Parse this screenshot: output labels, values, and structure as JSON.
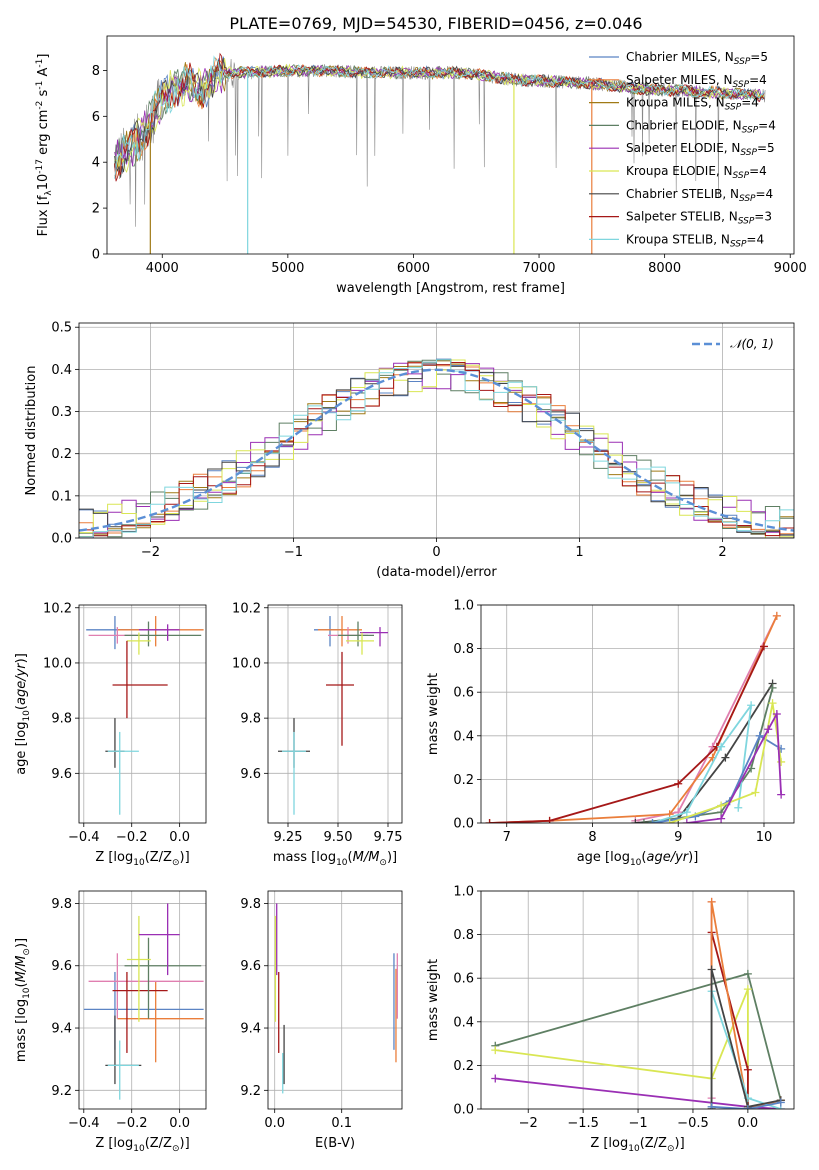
{
  "page": {
    "title": "PLATE=0769, MJD=54530, FIBERID=0456, z=0.046"
  },
  "colors": {
    "Chabrier MILES": "#5b84c4",
    "Salpeter MILES": "#ea7e3b",
    "Kroupa MILES": "#a07a16",
    "Chabrier ELODIE": "#5e7f63",
    "Salpeter ELODIE": "#9a2fb4",
    "Kroupa ELODIE": "#d9e653",
    "Chabrier STELIB": "#444444",
    "Salpeter STELIB": "#a51818",
    "Kroupa STELIB": "#7fd6de",
    "pink": "#e07fb0",
    "normal": "#5b8fd6"
  },
  "chart_data": [
    {
      "id": "spectrum",
      "type": "line",
      "xlabel": "wavelength [Angstrom, rest frame]",
      "ylabel": "Flux [f$_\\lambda$10$^{-17}$ erg cm$^{-2}$ s$^{-1}$ A$^{-1}$]",
      "xlim": [
        3560,
        9030
      ],
      "ylim": [
        0,
        9.5
      ],
      "xticks": [
        4000,
        5000,
        6000,
        7000,
        8000,
        9000
      ],
      "yticks": [
        0,
        2,
        4,
        6,
        8
      ],
      "legend_position": "upper right",
      "legend": [
        {
          "name": "Chabrier MILES",
          "suffix": "=5"
        },
        {
          "name": "Salpeter MILES",
          "suffix": "=4"
        },
        {
          "name": "Kroupa MILES",
          "suffix": "=4"
        },
        {
          "name": "Chabrier ELODIE",
          "suffix": "=4"
        },
        {
          "name": "Salpeter ELODIE",
          "suffix": "=5"
        },
        {
          "name": "Kroupa ELODIE",
          "suffix": "=4"
        },
        {
          "name": "Chabrier STELIB",
          "suffix": "=4"
        },
        {
          "name": "Salpeter STELIB",
          "suffix": "=3"
        },
        {
          "name": "Kroupa STELIB",
          "suffix": "=4"
        }
      ],
      "legend_sub": "SSP",
      "continuum": {
        "x": [
          3620,
          3700,
          3800,
          3900,
          4000,
          4100,
          4200,
          4300,
          4400,
          4500,
          4700,
          5000,
          5300,
          5600,
          6000,
          6400,
          6800,
          7200,
          7500,
          7800,
          8200,
          8500,
          8800
        ],
        "y": [
          4.0,
          4.4,
          4.9,
          5.7,
          6.8,
          7.2,
          7.5,
          7.1,
          7.6,
          7.9,
          7.9,
          8.0,
          8.0,
          7.9,
          7.9,
          7.9,
          7.6,
          7.5,
          7.4,
          7.2,
          7.1,
          7.0,
          6.9
        ]
      },
      "dropouts": [
        {
          "series": "Kroupa MILES",
          "x": 3905
        },
        {
          "series": "Kroupa STELIB",
          "x": 4680
        },
        {
          "series": "Kroupa ELODIE",
          "x": 6800
        },
        {
          "series": "Salpeter MILES",
          "x": 7420
        }
      ]
    },
    {
      "id": "residuals",
      "type": "histogram",
      "xlabel": "(data-model)/error",
      "ylabel": "Normed distribution",
      "xlim": [
        -2.5,
        2.5
      ],
      "ylim": [
        0,
        0.51
      ],
      "xticks": [
        -2,
        -1,
        0,
        1,
        2
      ],
      "yticks": [
        0.0,
        0.1,
        0.2,
        0.3,
        0.4,
        0.5
      ],
      "grid": true,
      "bin_width": 0.1,
      "bin_start": -2.5,
      "legend_position": "upper right",
      "normal_label": "$\\mathcal{N}(0, 1)$",
      "series": [
        {
          "name": "Chabrier MILES",
          "offset": 0.2
        },
        {
          "name": "Salpeter MILES",
          "offset": 1.3
        },
        {
          "name": "Kroupa MILES",
          "offset": 2.1
        },
        {
          "name": "Chabrier ELODIE",
          "offset": 3.4
        },
        {
          "name": "Salpeter ELODIE",
          "offset": 4.7
        },
        {
          "name": "Kroupa ELODIE",
          "offset": 5.5
        },
        {
          "name": "Chabrier STELIB",
          "offset": 6.6
        },
        {
          "name": "Salpeter STELIB",
          "offset": 7.9
        },
        {
          "name": "Kroupa STELIB",
          "offset": 8.8
        }
      ]
    },
    {
      "id": "age_vs_Z",
      "type": "errorbar",
      "xlabel": "Z [log$_{10}$(Z/Z$_\\odot$)]",
      "ylabel": "age  [log$_{10}$($age/yr$)]",
      "xlim": [
        -0.42,
        0.11
      ],
      "ylim": [
        9.42,
        10.21
      ],
      "xticks": [
        -0.4,
        -0.2,
        0.0
      ],
      "yticks": [
        9.6,
        9.8,
        10.0,
        10.2
      ],
      "grid": true,
      "points": [
        {
          "c": "Chabrier MILES",
          "x": -0.27,
          "xe": [
            0.12,
            0.1
          ],
          "y": 10.12,
          "ye": [
            0.07,
            0.05
          ]
        },
        {
          "c": "Salpeter MILES",
          "x": -0.1,
          "xe": [
            0.16,
            0.2
          ],
          "y": 10.12,
          "ye": [
            0.06,
            0.05
          ]
        },
        {
          "c": "pink",
          "x": -0.26,
          "xe": [
            0.12,
            0.12
          ],
          "y": 10.1,
          "ye": [
            0.03,
            0.03
          ]
        },
        {
          "c": "Chabrier ELODIE",
          "x": -0.13,
          "xe": [
            0.1,
            0.22
          ],
          "y": 10.1,
          "ye": [
            0.04,
            0.05
          ]
        },
        {
          "c": "Salpeter ELODIE",
          "x": -0.05,
          "xe": [
            0.12,
            0.05
          ],
          "y": 10.12,
          "ye": [
            0.04,
            0.02
          ]
        },
        {
          "c": "Kroupa ELODIE",
          "x": -0.17,
          "xe": [
            0.05,
            0.05
          ],
          "y": 10.08,
          "ye": [
            0.05,
            0.03
          ]
        },
        {
          "c": "Salpeter STELIB",
          "x": -0.22,
          "xe": [
            0.06,
            0.17
          ],
          "y": 9.92,
          "ye": [
            0.12,
            0.16
          ]
        },
        {
          "c": "Chabrier STELIB",
          "x": -0.27,
          "xe": [
            0.04,
            0.04
          ],
          "y": 9.68,
          "ye": [
            0.06,
            0.12
          ]
        },
        {
          "c": "Kroupa STELIB",
          "x": -0.25,
          "xe": [
            0.05,
            0.08
          ],
          "y": 9.68,
          "ye": [
            0.23,
            0.07
          ]
        }
      ]
    },
    {
      "id": "age_vs_mass",
      "type": "errorbar",
      "xlabel": "mass [log$_{10}$($M/M_\\odot$)]",
      "ylabel": "",
      "xlim": [
        9.15,
        9.82
      ],
      "ylim": [
        9.42,
        10.21
      ],
      "xticks": [
        9.25,
        9.5,
        9.75
      ],
      "yticks": [
        9.6,
        9.8,
        10.0,
        10.2
      ],
      "grid": true,
      "points": [
        {
          "c": "Chabrier MILES",
          "x": 9.46,
          "xe": [
            0.08,
            0.06
          ],
          "y": 10.12,
          "ye": [
            0.06,
            0.05
          ]
        },
        {
          "c": "Salpeter MILES",
          "x": 9.52,
          "xe": [
            0.12,
            0.1
          ],
          "y": 10.12,
          "ye": [
            0.06,
            0.05
          ]
        },
        {
          "c": "pink",
          "x": 9.55,
          "xe": [
            0.1,
            0.1
          ],
          "y": 10.1,
          "ye": [
            0.03,
            0.03
          ]
        },
        {
          "c": "Chabrier ELODIE",
          "x": 9.6,
          "xe": [
            0.1,
            0.08
          ],
          "y": 10.1,
          "ye": [
            0.04,
            0.05
          ]
        },
        {
          "c": "Salpeter ELODIE",
          "x": 9.71,
          "xe": [
            0.1,
            0.04
          ],
          "y": 10.11,
          "ye": [
            0.05,
            0.02
          ]
        },
        {
          "c": "Kroupa ELODIE",
          "x": 9.62,
          "xe": [
            0.08,
            0.06
          ],
          "y": 10.08,
          "ye": [
            0.05,
            0.03
          ]
        },
        {
          "c": "Salpeter STELIB",
          "x": 9.52,
          "xe": [
            0.08,
            0.06
          ],
          "y": 9.92,
          "ye": [
            0.22,
            0.12
          ]
        },
        {
          "c": "Chabrier STELIB",
          "x": 9.28,
          "xe": [
            0.08,
            0.08
          ],
          "y": 9.68,
          "ye": [
            0.06,
            0.12
          ]
        },
        {
          "c": "Kroupa STELIB",
          "x": 9.28,
          "xe": [
            0.06,
            0.06
          ],
          "y": 9.68,
          "ye": [
            0.23,
            0.07
          ]
        }
      ]
    },
    {
      "id": "mass_weight_vs_age",
      "type": "line",
      "xlabel": "age  [log$_{10}$($age/yr$)]",
      "ylabel": "mass weight",
      "xlim": [
        6.7,
        10.35
      ],
      "ylim": [
        0.0,
        1.0
      ],
      "xticks": [
        7,
        8,
        9,
        10
      ],
      "yticks": [
        0.0,
        0.2,
        0.4,
        0.6,
        0.8,
        1.0
      ],
      "grid": true,
      "series": [
        {
          "name": "pink",
          "x": [
            8.5,
            9.0,
            9.4,
            10.15
          ],
          "y": [
            0.01,
            0.05,
            0.35,
            0.95
          ]
        },
        {
          "name": "Salpeter MILES",
          "x": [
            6.8,
            7.5,
            8.9,
            9.4,
            10.15
          ],
          "y": [
            0.0,
            0.01,
            0.04,
            0.3,
            0.95
          ]
        },
        {
          "name": "Salpeter STELIB",
          "x": [
            6.8,
            7.5,
            9.0,
            9.45,
            10.0
          ],
          "y": [
            0.0,
            0.01,
            0.18,
            0.35,
            0.81
          ]
        },
        {
          "name": "Chabrier STELIB",
          "x": [
            8.5,
            9.0,
            9.55,
            10.1
          ],
          "y": [
            0.0,
            0.02,
            0.3,
            0.64
          ]
        },
        {
          "name": "Chabrier ELODIE",
          "x": [
            8.6,
            9.5,
            9.85,
            10.1
          ],
          "y": [
            0.0,
            0.05,
            0.25,
            0.62
          ]
        },
        {
          "name": "Kroupa STELIB",
          "x": [
            8.7,
            9.1,
            9.5,
            9.85,
            9.7
          ],
          "y": [
            0.0,
            0.05,
            0.35,
            0.54,
            0.07
          ]
        },
        {
          "name": "Chabrier MILES",
          "x": [
            8.7,
            9.2,
            9.6,
            9.95,
            10.2
          ],
          "y": [
            0.0,
            0.03,
            0.1,
            0.4,
            0.34
          ]
        },
        {
          "name": "Kroupa ELODIE",
          "x": [
            8.9,
            9.5,
            9.9,
            10.1,
            10.2
          ],
          "y": [
            0.0,
            0.08,
            0.14,
            0.55,
            0.28
          ]
        },
        {
          "name": "Salpeter ELODIE",
          "x": [
            9.1,
            9.5,
            10.05,
            10.15,
            10.2
          ],
          "y": [
            0.0,
            0.02,
            0.43,
            0.5,
            0.13
          ]
        }
      ]
    },
    {
      "id": "mass_vs_Z",
      "type": "errorbar",
      "xlabel": "Z [log$_{10}$(Z/Z$_\\odot$)]",
      "ylabel": "mass [log$_{10}$($M/M_\\odot$)]",
      "xlim": [
        -0.42,
        0.11
      ],
      "ylim": [
        9.14,
        9.84
      ],
      "xticks": [
        -0.4,
        -0.2,
        0.0
      ],
      "yticks": [
        9.2,
        9.4,
        9.6,
        9.8
      ],
      "grid": true,
      "points": [
        {
          "c": "Chabrier MILES",
          "x": -0.27,
          "xe": [
            0.13,
            0.37
          ],
          "y": 9.46,
          "ye": [
            0.13,
            0.12
          ]
        },
        {
          "c": "Salpeter MILES",
          "x": -0.1,
          "xe": [
            0.16,
            0.2
          ],
          "y": 9.43,
          "ye": [
            0.14,
            0.12
          ]
        },
        {
          "c": "pink",
          "x": -0.26,
          "xe": [
            0.12,
            0.36
          ],
          "y": 9.55,
          "ye": [
            0.12,
            0.09
          ]
        },
        {
          "c": "Salpeter STELIB",
          "x": -0.22,
          "xe": [
            0.06,
            0.17
          ],
          "y": 9.52,
          "ye": [
            0.2,
            0.06
          ]
        },
        {
          "c": "Chabrier ELODIE",
          "x": -0.13,
          "xe": [
            0.1,
            0.22
          ],
          "y": 9.6,
          "ye": [
            0.17,
            0.09
          ]
        },
        {
          "c": "Kroupa ELODIE",
          "x": -0.17,
          "xe": [
            0.05,
            0.05
          ],
          "y": 9.62,
          "ye": [
            0.2,
            0.14
          ]
        },
        {
          "c": "Salpeter ELODIE",
          "x": -0.05,
          "xe": [
            0.12,
            0.05
          ],
          "y": 9.7,
          "ye": [
            0.13,
            0.1
          ]
        },
        {
          "c": "Chabrier STELIB",
          "x": -0.27,
          "xe": [
            0.04,
            0.11
          ],
          "y": 9.28,
          "ye": [
            0.06,
            0.16
          ]
        },
        {
          "c": "Kroupa STELIB",
          "x": -0.25,
          "xe": [
            0.05,
            0.08
          ],
          "y": 9.28,
          "ye": [
            0.11,
            0.08
          ]
        }
      ]
    },
    {
      "id": "mass_vs_ebv",
      "type": "errorbar",
      "xlabel": "E(B-V)",
      "ylabel": "",
      "xlim": [
        -0.01,
        0.19
      ],
      "ylim": [
        9.14,
        9.84
      ],
      "xticks": [
        0.0,
        0.1
      ],
      "yticks": [
        9.2,
        9.4,
        9.6,
        9.8
      ],
      "grid": true,
      "points": [
        {
          "c": "Salpeter ELODIE",
          "x": 0.003,
          "xe": [
            0,
            0
          ],
          "y": 9.7,
          "ye": [
            0.13,
            0.1
          ]
        },
        {
          "c": "Kroupa ELODIE",
          "x": 0.001,
          "xe": [
            0,
            0
          ],
          "y": 9.62,
          "ye": [
            0.2,
            0.14
          ]
        },
        {
          "c": "Salpeter STELIB",
          "x": 0.006,
          "xe": [
            0,
            0
          ],
          "y": 9.52,
          "ye": [
            0.2,
            0.06
          ]
        },
        {
          "c": "Chabrier STELIB",
          "x": 0.014,
          "xe": [
            0,
            0
          ],
          "y": 9.3,
          "ye": [
            0.08,
            0.11
          ]
        },
        {
          "c": "Kroupa STELIB",
          "x": 0.012,
          "xe": [
            0,
            0
          ],
          "y": 9.25,
          "ye": [
            0.06,
            0.07
          ]
        },
        {
          "c": "Chabrier MILES",
          "x": 0.178,
          "xe": [
            0,
            0
          ],
          "y": 9.46,
          "ye": [
            0.13,
            0.18
          ]
        },
        {
          "c": "Salpeter MILES",
          "x": 0.181,
          "xe": [
            0,
            0
          ],
          "y": 9.43,
          "ye": [
            0.14,
            0.16
          ]
        },
        {
          "c": "pink",
          "x": 0.183,
          "xe": [
            0,
            0
          ],
          "y": 9.55,
          "ye": [
            0.12,
            0.09
          ]
        }
      ]
    },
    {
      "id": "mass_weight_vs_Z",
      "type": "line",
      "xlabel": "Z [log$_{10}$(Z/Z$_\\odot$)]",
      "ylabel": "mass weight",
      "xlim": [
        -2.43,
        0.42
      ],
      "ylim": [
        0.0,
        1.0
      ],
      "xticks": [
        -2.0,
        -1.5,
        -1.0,
        -0.5,
        0.0
      ],
      "yticks": [
        0.0,
        0.2,
        0.4,
        0.6,
        0.8,
        1.0
      ],
      "grid": true,
      "series": [
        {
          "name": "Chabrier ELODIE",
          "x": [
            -2.3,
            0.0,
            0.3
          ],
          "y": [
            0.29,
            0.62,
            0.04
          ]
        },
        {
          "name": "Kroupa ELODIE",
          "x": [
            -2.3,
            -0.33,
            0.0,
            0.0
          ],
          "y": [
            0.27,
            0.14,
            0.55,
            0.0
          ]
        },
        {
          "name": "Salpeter ELODIE",
          "x": [
            -2.3,
            0.0,
            0.3
          ],
          "y": [
            0.14,
            0.01,
            0.0
          ]
        },
        {
          "name": "Salpeter STELIB",
          "x": [
            -0.33,
            -0.33,
            0.0,
            0.0
          ],
          "y": [
            0.0,
            0.81,
            0.18,
            0.0
          ]
        },
        {
          "name": "pink",
          "x": [
            -0.33,
            -0.33
          ],
          "y": [
            0.05,
            0.95
          ]
        },
        {
          "name": "Salpeter MILES",
          "x": [
            -0.33,
            -0.33,
            0.0,
            0.3
          ],
          "y": [
            0.0,
            0.95,
            0.0,
            0.04
          ]
        },
        {
          "name": "Kroupa STELIB",
          "x": [
            -0.33,
            -0.33,
            0.0,
            0.3
          ],
          "y": [
            0.0,
            0.54,
            0.05,
            0.0
          ]
        },
        {
          "name": "Chabrier STELIB",
          "x": [
            -0.33,
            -0.33,
            0.0,
            0.3
          ],
          "y": [
            0.0,
            0.64,
            0.01,
            0.04
          ]
        },
        {
          "name": "Chabrier MILES",
          "x": [
            -0.33,
            0.0,
            0.3
          ],
          "y": [
            0.01,
            0.0,
            0.03
          ]
        }
      ]
    }
  ]
}
